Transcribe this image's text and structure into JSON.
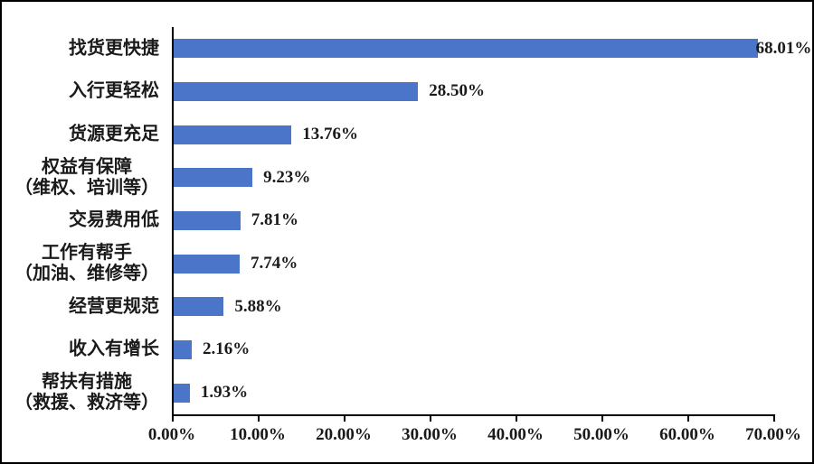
{
  "chart_data": {
    "type": "bar",
    "orientation": "horizontal",
    "title": "",
    "xlabel": "",
    "ylabel": "",
    "categories": [
      [
        "找货更快捷"
      ],
      [
        "入行更轻松"
      ],
      [
        "货源更充足"
      ],
      [
        "权益有保障",
        "（维权、培训等）"
      ],
      [
        "交易费用低"
      ],
      [
        "工作有帮手",
        "（加油、维修等）"
      ],
      [
        "经营更规范"
      ],
      [
        "收入有增长"
      ],
      [
        "帮扶有措施",
        "（救援、救济等）"
      ]
    ],
    "values": [
      68.01,
      28.5,
      13.76,
      9.23,
      7.81,
      7.74,
      5.88,
      2.16,
      1.93
    ],
    "value_labels": [
      "68.01%",
      "28.50%",
      "13.76%",
      "9.23%",
      "7.81%",
      "7.74%",
      "5.88%",
      "2.16%",
      "1.93%"
    ],
    "xlim": [
      0,
      70
    ],
    "x_tick_step": 10,
    "x_tick_labels": [
      "0.00%",
      "10.00%",
      "20.00%",
      "30.00%",
      "40.00%",
      "50.00%",
      "60.00%",
      "70.00%"
    ],
    "grid": false,
    "legend": false,
    "bar_color": "#4a75c9",
    "axis_color": "#000000",
    "text_color": "#1a1a1a",
    "frame_color": "#000000",
    "background_color": "#ffffff"
  }
}
